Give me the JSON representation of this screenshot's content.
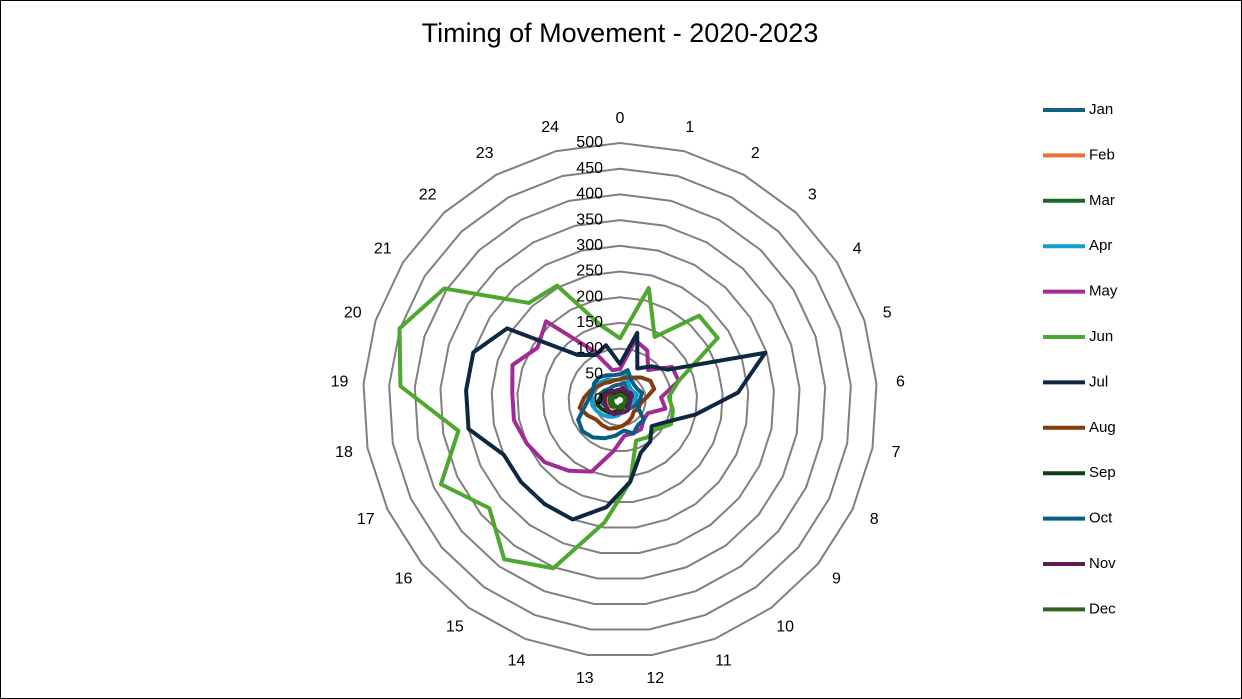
{
  "chart_data": {
    "type": "radar",
    "title": "Timing of Movement  - 2020-2023",
    "categories": [
      "0",
      "1",
      "2",
      "3",
      "4",
      "5",
      "6",
      "7",
      "8",
      "9",
      "10",
      "11",
      "12",
      "13",
      "14",
      "15",
      "16",
      "17",
      "18",
      "19",
      "20",
      "21",
      "22",
      "23",
      "24"
    ],
    "ylim": [
      0,
      500
    ],
    "yticks": [
      0,
      50,
      100,
      150,
      200,
      250,
      300,
      350,
      400,
      450,
      500
    ],
    "grid": true,
    "legend": "right",
    "series": [
      {
        "name": "Jan",
        "color": "#156082",
        "values": [
          30,
          35,
          30,
          25,
          30,
          35,
          30,
          35,
          30,
          25,
          25,
          25,
          25,
          30,
          30,
          35,
          30,
          30,
          35,
          35,
          40,
          35,
          30,
          30,
          30
        ]
      },
      {
        "name": "Feb",
        "color": "#e97132",
        "values": [
          15,
          15,
          15,
          15,
          15,
          20,
          15,
          15,
          15,
          15,
          15,
          15,
          15,
          20,
          20,
          20,
          20,
          25,
          25,
          25,
          25,
          20,
          20,
          15,
          15
        ]
      },
      {
        "name": "Mar",
        "color": "#196b24",
        "values": [
          10,
          10,
          10,
          10,
          10,
          15,
          10,
          10,
          10,
          10,
          10,
          10,
          10,
          15,
          15,
          15,
          20,
          20,
          20,
          20,
          20,
          15,
          15,
          10,
          10
        ]
      },
      {
        "name": "Apr",
        "color": "#0f9ed5",
        "values": [
          40,
          50,
          35,
          30,
          30,
          35,
          30,
          25,
          20,
          20,
          20,
          20,
          25,
          30,
          35,
          40,
          45,
          50,
          55,
          55,
          60,
          55,
          50,
          45,
          40
        ]
      },
      {
        "name": "May",
        "color": "#a02b93",
        "values": [
          60,
          120,
          110,
          80,
          120,
          120,
          80,
          90,
          60,
          60,
          70,
          70,
          70,
          100,
          150,
          170,
          190,
          200,
          210,
          210,
          220,
          190,
          210,
          110,
          60
        ]
      },
      {
        "name": "Jun",
        "color": "#4ea72e",
        "values": [
          120,
          225,
          140,
          225,
          225,
          120,
          95,
          105,
          110,
          90,
          90,
          85,
          160,
          240,
          352,
          383,
          330,
          385,
          320,
          428,
          451,
          405,
          259,
          254,
          150
        ]
      },
      {
        "name": "Jul",
        "color": "#0e2841",
        "values": [
          70,
          135,
          70,
          90,
          110,
          297,
          230,
          150,
          100,
          80,
          100,
          110,
          160,
          210,
          250,
          250,
          250,
          250,
          300,
          300,
          300,
          260,
          120,
          100,
          110
        ]
      },
      {
        "name": "Aug",
        "color": "#843c0c",
        "values": [
          40,
          45,
          50,
          60,
          70,
          70,
          50,
          40,
          40,
          35,
          40,
          45,
          50,
          55,
          60,
          60,
          60,
          70,
          80,
          70,
          60,
          50,
          45,
          40,
          40
        ]
      },
      {
        "name": "Sep",
        "color": "#0e3f14",
        "values": [
          15,
          15,
          15,
          15,
          20,
          20,
          20,
          15,
          15,
          15,
          15,
          15,
          20,
          20,
          25,
          30,
          35,
          40,
          45,
          40,
          35,
          30,
          20,
          15,
          15
        ]
      },
      {
        "name": "Oct",
        "color": "#095e80",
        "values": [
          50,
          60,
          45,
          40,
          40,
          45,
          40,
          35,
          40,
          60,
          60,
          70,
          60,
          70,
          80,
          90,
          95,
          90,
          70,
          60,
          55,
          60,
          60,
          55,
          50
        ]
      },
      {
        "name": "Nov",
        "color": "#5f1a57",
        "values": [
          20,
          25,
          20,
          20,
          25,
          25,
          20,
          20,
          20,
          20,
          25,
          25,
          25,
          25,
          30,
          30,
          30,
          30,
          30,
          30,
          30,
          25,
          25,
          20,
          20
        ]
      },
      {
        "name": "Dec",
        "color": "#2f6319",
        "values": [
          10,
          10,
          10,
          10,
          10,
          10,
          10,
          10,
          10,
          10,
          10,
          15,
          15,
          15,
          15,
          15,
          15,
          15,
          15,
          15,
          15,
          10,
          10,
          10,
          10
        ]
      }
    ]
  }
}
